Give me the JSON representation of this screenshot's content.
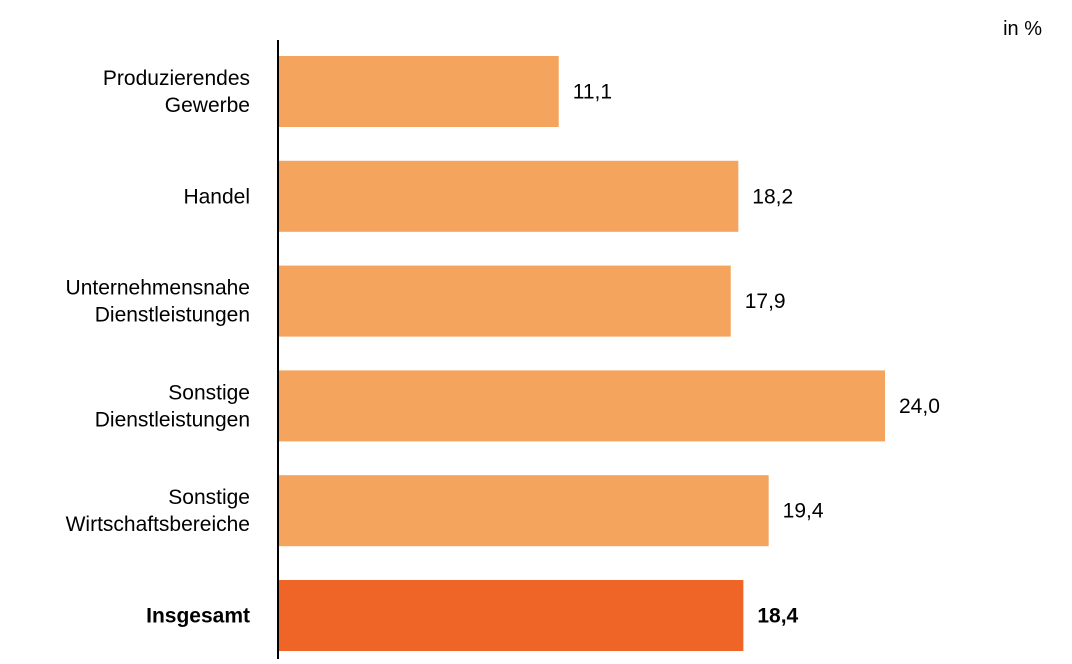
{
  "chart_data": {
    "type": "bar",
    "orientation": "horizontal",
    "unit": "in %",
    "categories": [
      [
        "Produzierendes",
        "Gewerbe"
      ],
      [
        "Handel"
      ],
      [
        "Unternehmensnahe",
        "Dienstleistungen"
      ],
      [
        "Sonstige",
        "Dienstleistungen"
      ],
      [
        "Sonstige",
        "Wirtschaftsbereiche"
      ],
      [
        "Insgesamt"
      ]
    ],
    "values": [
      11.1,
      18.2,
      17.9,
      24.0,
      19.4,
      18.4
    ],
    "value_labels": [
      "11,1",
      "18,2",
      "17,9",
      "24,0",
      "19,4",
      "18,4"
    ],
    "highlight": [
      false,
      false,
      false,
      false,
      false,
      true
    ],
    "colors": {
      "bar": "#F4A45C",
      "highlight_bar": "#EF6528",
      "axis": "#000000",
      "text": "#000000"
    },
    "xlim": [
      0,
      24.0
    ],
    "grid": false,
    "legend": "none"
  }
}
